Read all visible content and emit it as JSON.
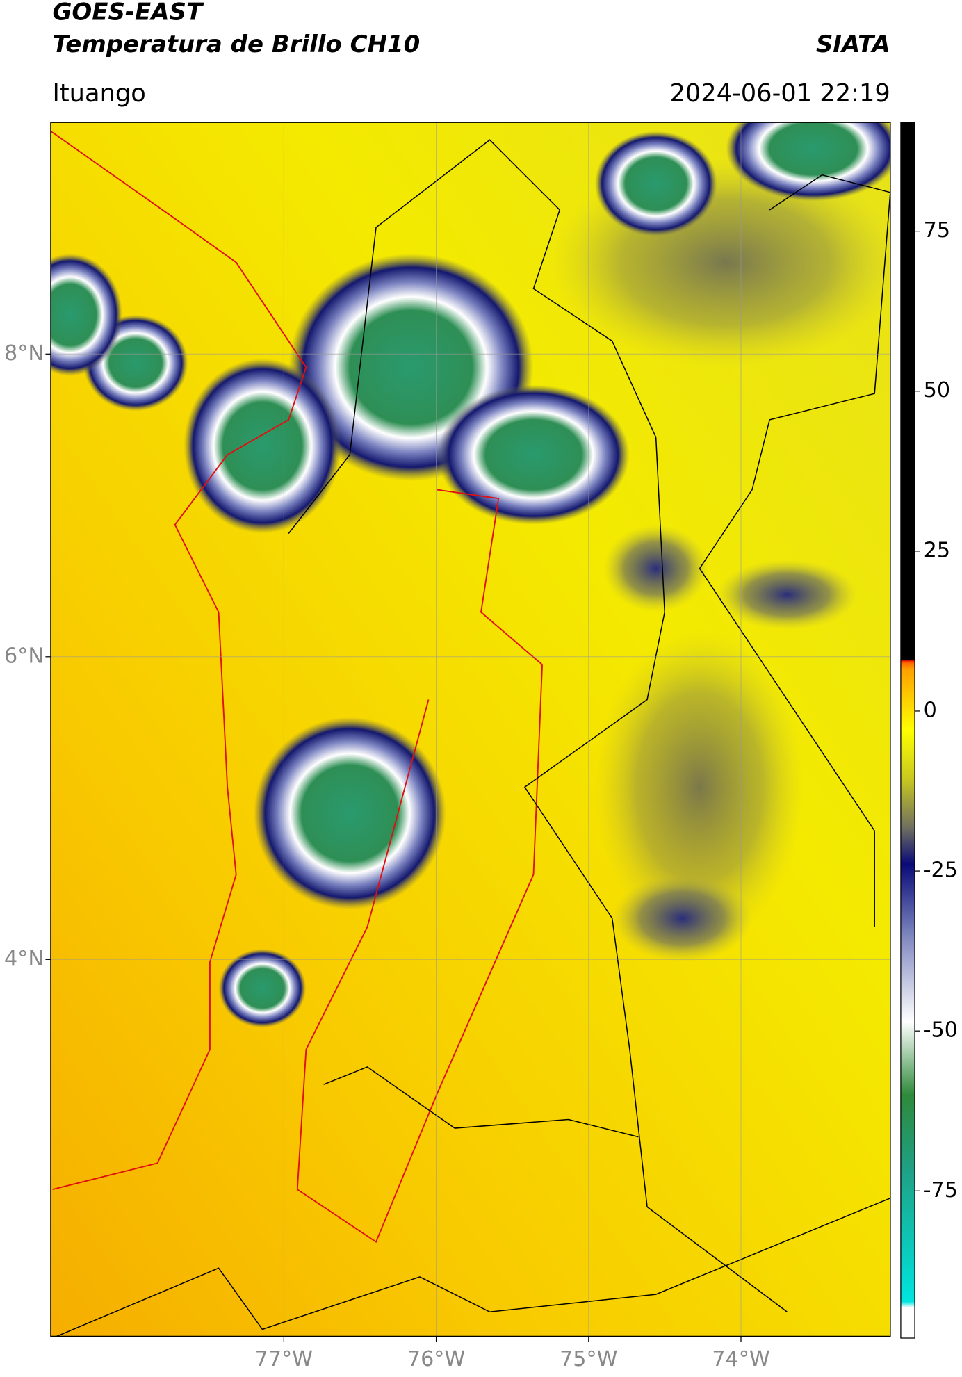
{
  "chart_data": {
    "type": "map",
    "title": "GOES-EAST",
    "subtitle": "Temperatura de Brillo CH10",
    "source": "SIATA",
    "location": "Ituango",
    "datetime": "2024-06-01 22:19",
    "xlim": [
      -78.53,
      -73.02
    ],
    "ylim": [
      1.51,
      9.53
    ],
    "xticks": [
      {
        "value": -77,
        "label": "77°W"
      },
      {
        "value": -76,
        "label": "76°W"
      },
      {
        "value": -75,
        "label": "75°W"
      },
      {
        "value": -74,
        "label": "74°W"
      }
    ],
    "yticks": [
      {
        "value": 8,
        "label": "8°N"
      },
      {
        "value": 6,
        "label": "6°N"
      },
      {
        "value": 4,
        "label": "4°N"
      }
    ],
    "grid": true,
    "colorbar": {
      "lim": [
        -98,
        92
      ],
      "ticks": [
        75,
        50,
        25,
        0,
        -25,
        -50,
        -75
      ]
    }
  }
}
